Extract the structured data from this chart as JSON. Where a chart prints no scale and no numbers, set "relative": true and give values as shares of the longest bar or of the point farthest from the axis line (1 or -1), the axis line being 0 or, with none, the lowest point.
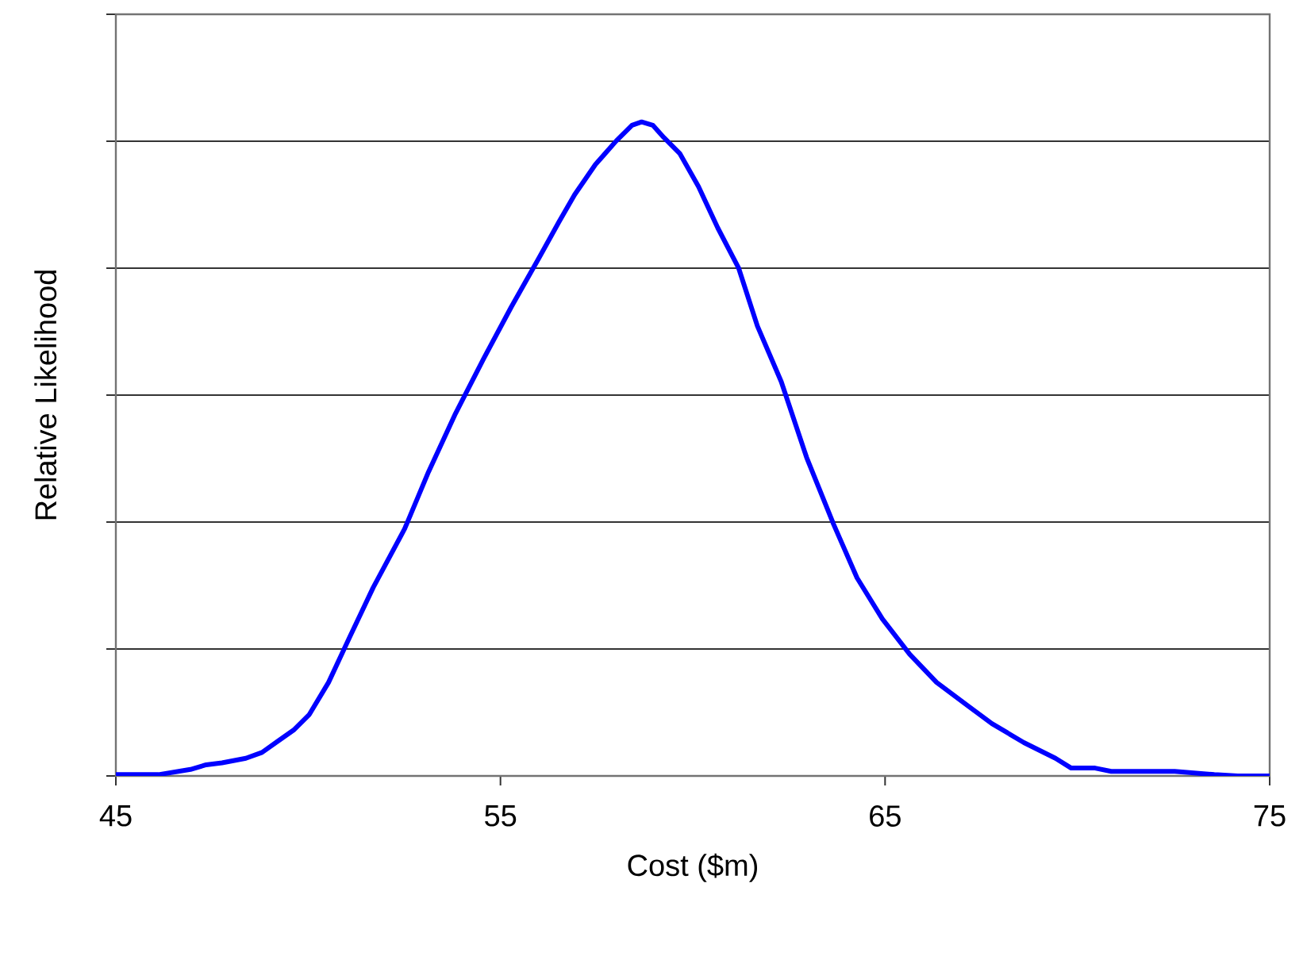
{
  "chart_data": {
    "type": "line",
    "xlabel": "Cost ($m)",
    "ylabel": "Relative Likelihood",
    "relative": true,
    "xlim": [
      45,
      75
    ],
    "xticks": [
      45,
      55,
      65,
      75
    ],
    "grid": "y",
    "marker": "none",
    "line_style": "solid",
    "series": [
      {
        "color": "#0000ff",
        "x": [
          45,
          46.11,
          46.94,
          47.35,
          47.76,
          48.38,
          48.8,
          49.21,
          49.62,
          50.03,
          50.53,
          51.07,
          51.69,
          52.51,
          53.13,
          53.83,
          54.57,
          55.28,
          56.02,
          56.52,
          56.93,
          57.47,
          58.01,
          58.42,
          58.67,
          58.96,
          59.25,
          59.66,
          60.15,
          60.65,
          61.19,
          61.68,
          62.3,
          62.96,
          63.66,
          64.27,
          64.93,
          65.64,
          66.34,
          67.16,
          67.78,
          68.61,
          69.43,
          69.84,
          70.46,
          70.88,
          72.53,
          73.56,
          74.17,
          75
        ],
        "values": [
          0.002,
          0.002,
          0.01,
          0.017,
          0.02,
          0.027,
          0.036,
          0.053,
          0.07,
          0.094,
          0.143,
          0.211,
          0.288,
          0.378,
          0.465,
          0.554,
          0.639,
          0.717,
          0.794,
          0.847,
          0.889,
          0.935,
          0.971,
          0.995,
          1,
          0.995,
          0.976,
          0.952,
          0.901,
          0.838,
          0.777,
          0.688,
          0.603,
          0.487,
          0.385,
          0.303,
          0.24,
          0.186,
          0.143,
          0.107,
          0.08,
          0.051,
          0.027,
          0.012,
          0.012,
          0.007,
          0.007,
          0.002,
          0,
          0
        ]
      }
    ]
  }
}
